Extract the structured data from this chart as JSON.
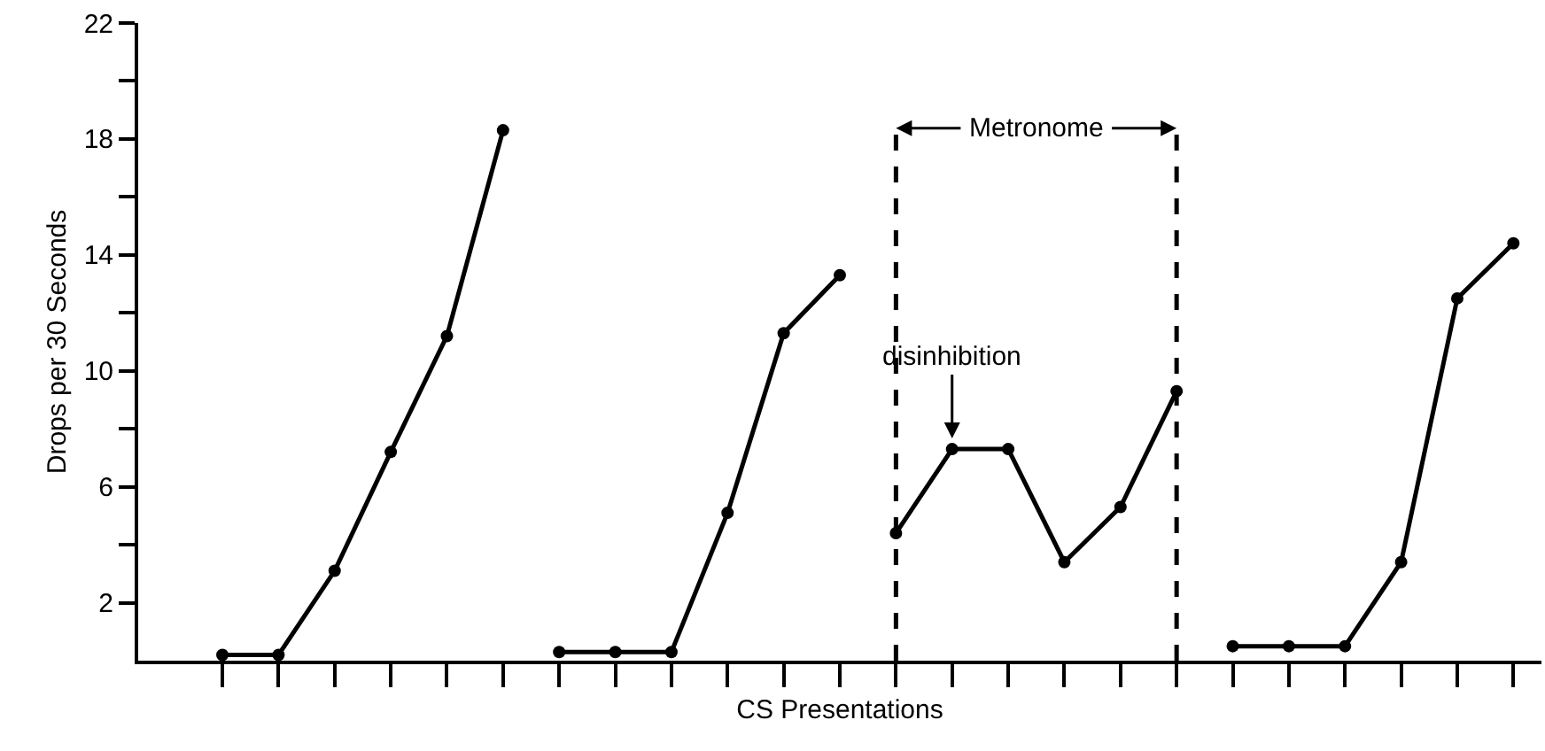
{
  "chart_data": {
    "type": "line",
    "xlabel": "CS Presentations",
    "ylabel": "Drops per 30 Seconds",
    "categories": [
      null,
      null,
      null,
      null,
      null,
      null,
      null,
      null,
      null,
      null,
      null,
      null,
      null,
      null,
      null,
      null,
      null,
      null,
      null,
      null,
      null,
      null,
      null,
      null,
      null
    ],
    "ylim": [
      0,
      22
    ],
    "yticks": [
      2,
      {
        "value": 4,
        "label": null
      },
      6,
      {
        "value": 8,
        "label": null
      },
      10,
      {
        "value": 12,
        "label": null
      },
      14,
      {
        "value": 16,
        "label": null
      },
      18,
      {
        "value": 20,
        "label": null
      },
      22
    ],
    "tick_labels": "y",
    "grid": false,
    "marker": "circle",
    "line_style": "solid",
    "series": [
      {
        "color": "#000000",
        "values": [
          null,
          0.2,
          0.2,
          3.1,
          7.2,
          11.2,
          18.3,
          null,
          null,
          null,
          null,
          null,
          null,
          null,
          null,
          null,
          null,
          null,
          null,
          null,
          null,
          null,
          null,
          null,
          null
        ]
      },
      {
        "color": "#000000",
        "values": [
          null,
          null,
          null,
          null,
          null,
          null,
          null,
          0.3,
          0.3,
          0.3,
          5.1,
          11.3,
          13.3,
          null,
          null,
          null,
          null,
          null,
          null,
          null,
          null,
          null,
          null,
          null,
          null
        ]
      },
      {
        "color": "#000000",
        "values": [
          null,
          null,
          null,
          null,
          null,
          null,
          null,
          null,
          null,
          null,
          null,
          null,
          null,
          4.4,
          7.3,
          7.3,
          3.4,
          5.3,
          9.3,
          null,
          null,
          null,
          null,
          null,
          null
        ]
      },
      {
        "color": "#000000",
        "values": [
          null,
          null,
          null,
          null,
          null,
          null,
          null,
          null,
          null,
          null,
          null,
          null,
          null,
          null,
          null,
          null,
          null,
          null,
          null,
          0.5,
          0.5,
          0.5,
          3.4,
          12.5,
          14.4
        ]
      }
    ],
    "annotations": [
      "Metronome",
      {
        "text": "disinhibition",
        "y": 7.3
      }
    ]
  }
}
